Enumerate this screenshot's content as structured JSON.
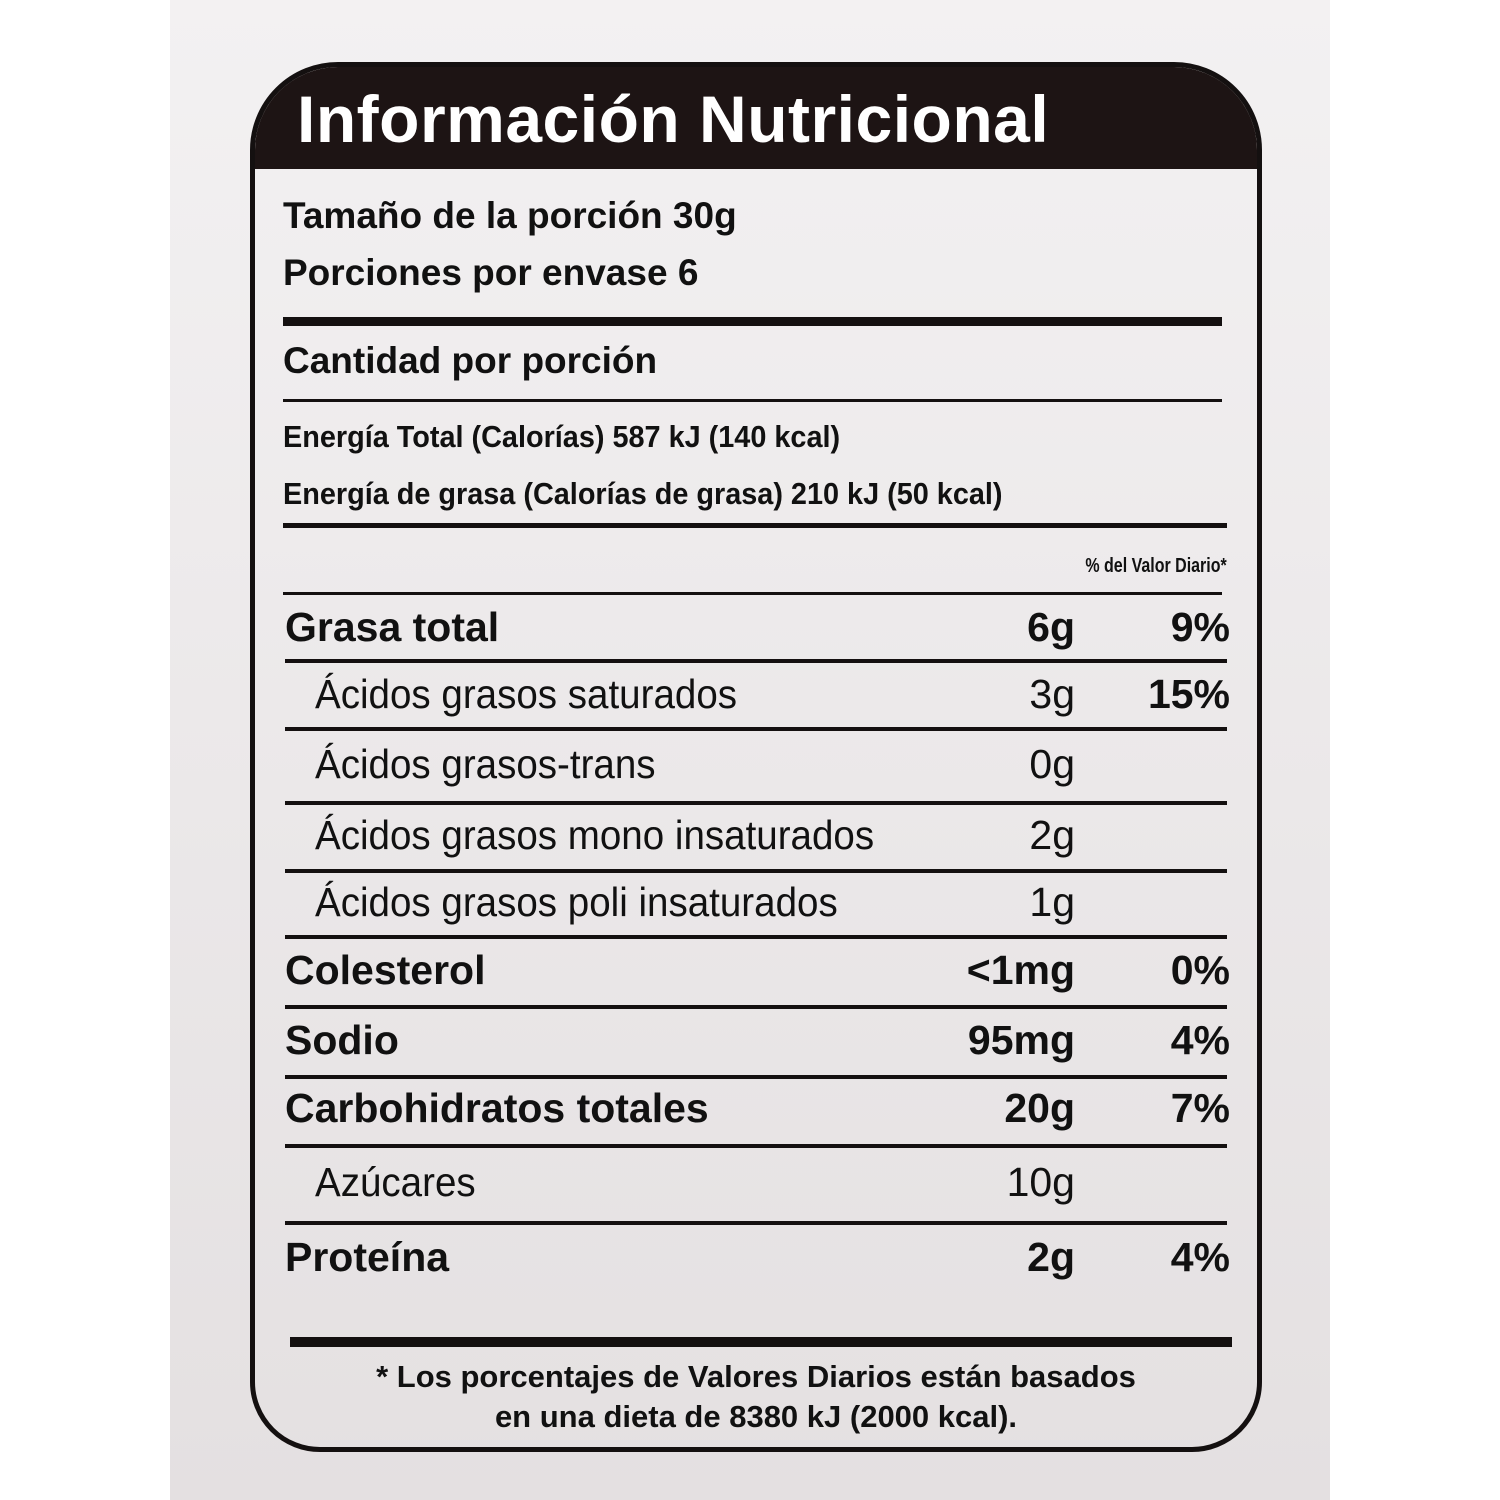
{
  "title": "Información Nutricional",
  "serving_size": "Tamaño de la porción 30g",
  "servings_per_container": "Porciones por envase 6",
  "amount_per_serving": "Cantidad por porción",
  "energy_total": "Energía Total (Calorías) 587 kJ (140 kcal)",
  "energy_fat": "Energía de grasa (Calorías de grasa) 210 kJ (50 kcal)",
  "daily_value_header": "% del Valor Diario*",
  "nutrients": [
    {
      "name": "Grasa total",
      "amount": "6g",
      "dv": "9%",
      "bold": true
    },
    {
      "name": "Ácidos grasos saturados",
      "amount": "3g",
      "dv": "15%",
      "bold": false
    },
    {
      "name": "Ácidos grasos-trans",
      "amount": "0g",
      "dv": "",
      "bold": false
    },
    {
      "name": "Ácidos grasos mono insaturados",
      "amount": "2g",
      "dv": "",
      "bold": false
    },
    {
      "name": "Ácidos grasos poli insaturados",
      "amount": "1g",
      "dv": "",
      "bold": false
    },
    {
      "name": "Colesterol",
      "amount": "<1mg",
      "dv": "0%",
      "bold": true
    },
    {
      "name": "Sodio",
      "amount": "95mg",
      "dv": "4%",
      "bold": true
    },
    {
      "name": "Carbohidratos totales",
      "amount": "20g",
      "dv": "7%",
      "bold": true
    },
    {
      "name": "Azúcares",
      "amount": "10g",
      "dv": "",
      "bold": false
    },
    {
      "name": "Proteína",
      "amount": "2g",
      "dv": "4%",
      "bold": true
    }
  ],
  "footnote_line1": "* Los porcentajes de Valores Diarios están basados",
  "footnote_line2": "en una dieta de 8380 kJ (2000 kcal)."
}
